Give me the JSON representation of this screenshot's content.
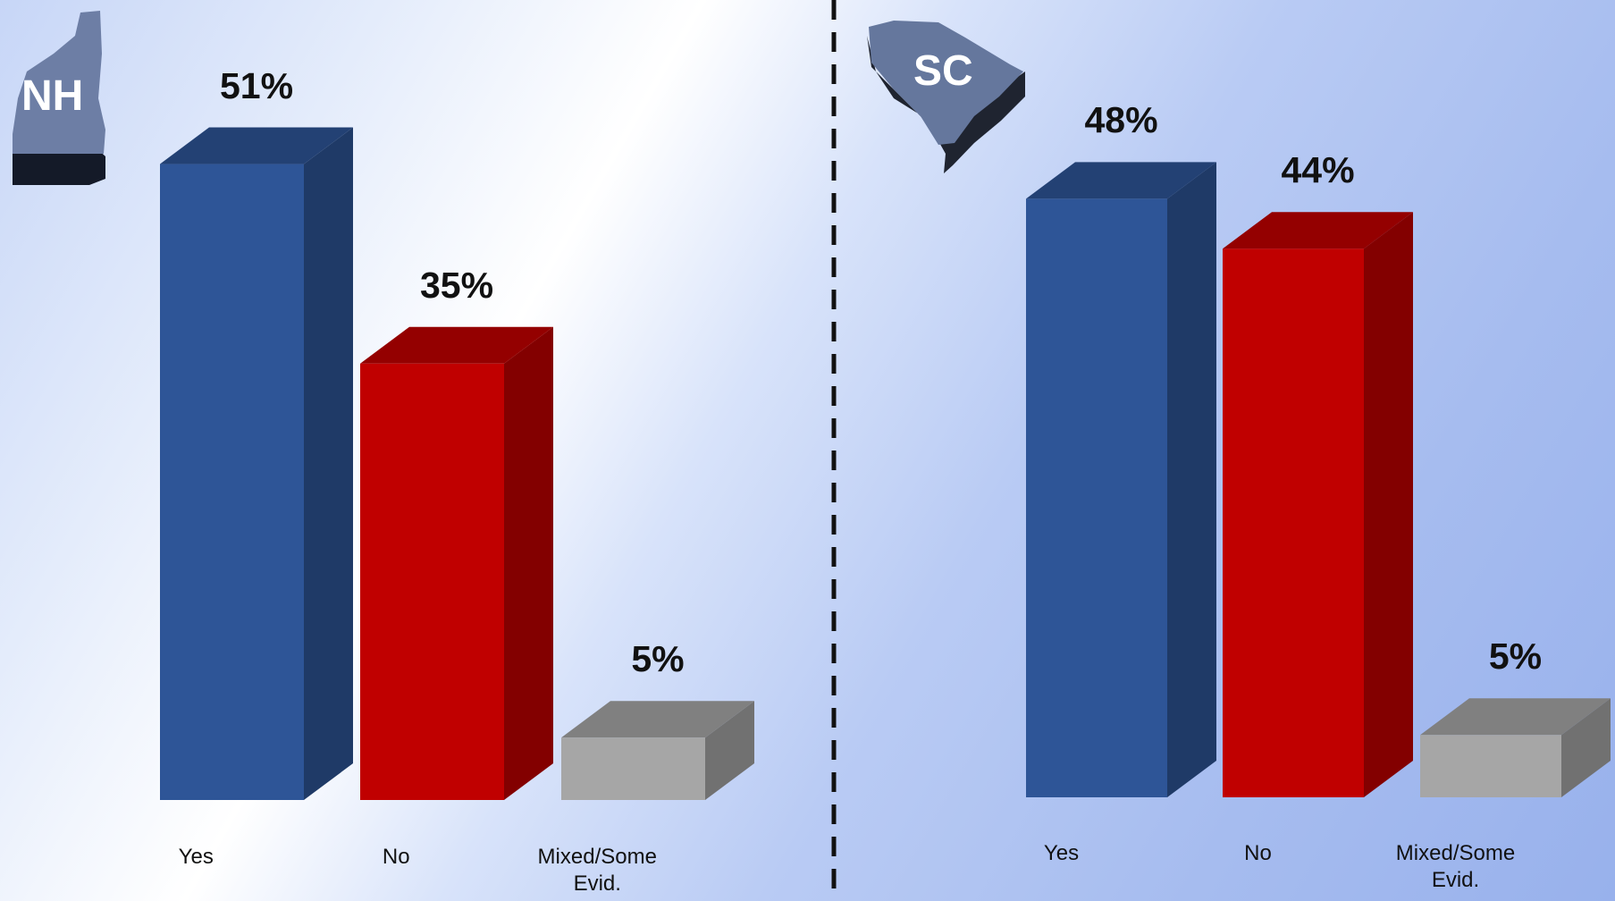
{
  "chart_data": [
    {
      "type": "bar3d",
      "title": "NH",
      "categories": [
        "Yes",
        "No",
        "Mixed/Some Evid."
      ],
      "values": [
        51,
        35,
        5
      ],
      "value_labels": [
        "51%",
        "35%",
        "5%"
      ],
      "colors": [
        "#2e5597",
        "#c00000",
        "#a6a6a6"
      ]
    },
    {
      "type": "bar3d",
      "title": "SC",
      "categories": [
        "Yes",
        "No",
        "Mixed/Some Evid."
      ],
      "values": [
        48,
        44,
        5
      ],
      "value_labels": [
        "48%",
        "44%",
        "5%"
      ],
      "colors": [
        "#2e5597",
        "#c00000",
        "#a6a6a6"
      ]
    }
  ]
}
